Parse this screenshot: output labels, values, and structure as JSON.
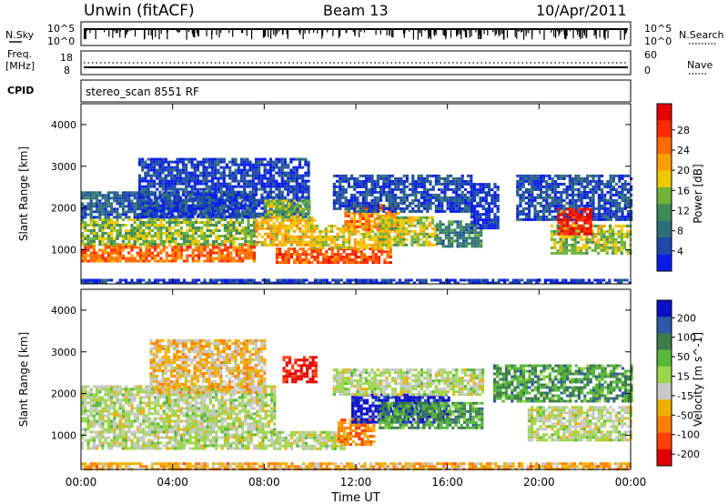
{
  "header": {
    "station": "Unwin (fitACF)",
    "beam": "Beam 13",
    "date": "10/Apr/2011"
  },
  "status_panels": {
    "nsky_label": "N.Sky",
    "nsearch_label": "N.Search",
    "nsky_ticks": [
      "10^5",
      "10^0"
    ],
    "nsearch_ticks": [
      "10^5",
      "10^0"
    ],
    "freq_label_line1": "Freq.",
    "freq_label_line2": "[MHz]",
    "freq_ticks": [
      "18",
      "8"
    ],
    "nave_label": "Nave",
    "nave_ticks": [
      "60",
      "0"
    ],
    "cpid_label": "CPID",
    "cpid_text": "stereo_scan 8551 RF"
  },
  "chart_data": [
    {
      "type": "heatmap",
      "name": "power",
      "ylabel": "Slant Range [km]",
      "xlabel": "Time UT",
      "x_ticks": [
        "00:00",
        "04:00",
        "08:00",
        "12:00",
        "16:00",
        "20:00",
        "00:00"
      ],
      "x_range_hours": [
        0,
        24
      ],
      "y_range_km": [
        180,
        4500
      ],
      "y_ticks": [
        1000,
        2000,
        3000,
        4000
      ],
      "colorbar": {
        "label": "Power [dB]",
        "ticks": [
          "4",
          "8",
          "12",
          "16",
          "20",
          "24",
          "28"
        ],
        "colors": [
          "#0a1de8",
          "#1d4aa8",
          "#2d6e7a",
          "#3f8a5a",
          "#6fb23a",
          "#f0c800",
          "#ffa000",
          "#ff6a00",
          "#ff2a00",
          "#e60000"
        ]
      },
      "bands": [
        {
          "t0": 0.0,
          "t1": 7.6,
          "r0": 700,
          "r1": 1150,
          "level": 0.75
        },
        {
          "t0": 0.0,
          "t1": 7.6,
          "r0": 1150,
          "r1": 1750,
          "level": 0.45
        },
        {
          "t0": 0.0,
          "t1": 7.6,
          "r0": 1750,
          "r1": 2400,
          "level": 0.2
        },
        {
          "t0": 2.5,
          "t1": 10.0,
          "r0": 1800,
          "r1": 3200,
          "level": 0.12
        },
        {
          "t0": 7.6,
          "t1": 10.2,
          "r0": 1100,
          "r1": 1800,
          "level": 0.6
        },
        {
          "t0": 8.0,
          "t1": 10.0,
          "r0": 1800,
          "r1": 2200,
          "level": 0.45
        },
        {
          "t0": 8.5,
          "t1": 13.5,
          "r0": 700,
          "r1": 1050,
          "level": 0.8
        },
        {
          "t0": 10.0,
          "t1": 13.5,
          "r0": 1050,
          "r1": 1600,
          "level": 0.55
        },
        {
          "t0": 11.5,
          "t1": 13.8,
          "r0": 1500,
          "r1": 2100,
          "level": 0.7
        },
        {
          "t0": 13.0,
          "t1": 15.5,
          "r0": 1100,
          "r1": 1800,
          "level": 0.5
        },
        {
          "t0": 15.5,
          "t1": 17.5,
          "r0": 1100,
          "r1": 1700,
          "level": 0.3
        },
        {
          "t0": 11.0,
          "t1": 17.0,
          "r0": 1900,
          "r1": 2800,
          "level": 0.15
        },
        {
          "t0": 17.0,
          "t1": 18.2,
          "r0": 1500,
          "r1": 2600,
          "level": 0.08
        },
        {
          "t0": 19.0,
          "t1": 24.0,
          "r0": 1700,
          "r1": 2800,
          "level": 0.15
        },
        {
          "t0": 20.5,
          "t1": 24.0,
          "r0": 900,
          "r1": 1600,
          "level": 0.5
        },
        {
          "t0": 20.8,
          "t1": 22.2,
          "r0": 1400,
          "r1": 2000,
          "level": 0.9
        },
        {
          "t0": 0.0,
          "t1": 24.0,
          "r0": 180,
          "r1": 300,
          "level": 0.1
        }
      ]
    },
    {
      "type": "heatmap",
      "name": "velocity",
      "ylabel": "Slant Range [km]",
      "xlabel": "Time UT",
      "x_ticks": [
        "00:00",
        "04:00",
        "08:00",
        "12:00",
        "16:00",
        "20:00",
        "00:00"
      ],
      "x_range_hours": [
        0,
        24
      ],
      "y_range_km": [
        180,
        4500
      ],
      "y_ticks": [
        1000,
        2000,
        3000,
        4000
      ],
      "colorbar": {
        "label": "Velocity [m s^-1]",
        "ticks": [
          "200",
          "100",
          "50",
          "15",
          "-15",
          "-50",
          "-100",
          "-200"
        ],
        "colors": [
          "#0a10c8",
          "#2a5aa8",
          "#3e7d48",
          "#56b83a",
          "#9cd64a",
          "#c8c8c8",
          "#f0b000",
          "#ff8000",
          "#ff4000",
          "#e00000"
        ]
      },
      "bands": [
        {
          "t0": 0.0,
          "t1": 8.5,
          "r0": 700,
          "r1": 1500,
          "level": 0.5
        },
        {
          "t0": 0.0,
          "t1": 8.5,
          "r0": 1500,
          "r1": 2200,
          "level": 0.5
        },
        {
          "t0": 3.0,
          "t1": 8.0,
          "r0": 2000,
          "r1": 3300,
          "level": 0.62
        },
        {
          "t0": 8.8,
          "t1": 10.2,
          "r0": 2300,
          "r1": 2900,
          "level": 0.95
        },
        {
          "t0": 8.5,
          "t1": 11.5,
          "r0": 700,
          "r1": 1100,
          "level": 0.5
        },
        {
          "t0": 11.2,
          "t1": 12.8,
          "r0": 800,
          "r1": 1400,
          "level": 0.75
        },
        {
          "t0": 11.8,
          "t1": 16.0,
          "r0": 1300,
          "r1": 2000,
          "level": 0.02
        },
        {
          "t0": 13.0,
          "t1": 17.5,
          "r0": 1200,
          "r1": 1800,
          "level": 0.3
        },
        {
          "t0": 11.0,
          "t1": 17.5,
          "r0": 2000,
          "r1": 2600,
          "level": 0.5
        },
        {
          "t0": 18.0,
          "t1": 24.0,
          "r0": 1800,
          "r1": 2700,
          "level": 0.3
        },
        {
          "t0": 19.5,
          "t1": 24.0,
          "r0": 900,
          "r1": 1700,
          "level": 0.5
        },
        {
          "t0": 0.0,
          "t1": 24.0,
          "r0": 180,
          "r1": 350,
          "level": 0.68
        }
      ]
    }
  ]
}
